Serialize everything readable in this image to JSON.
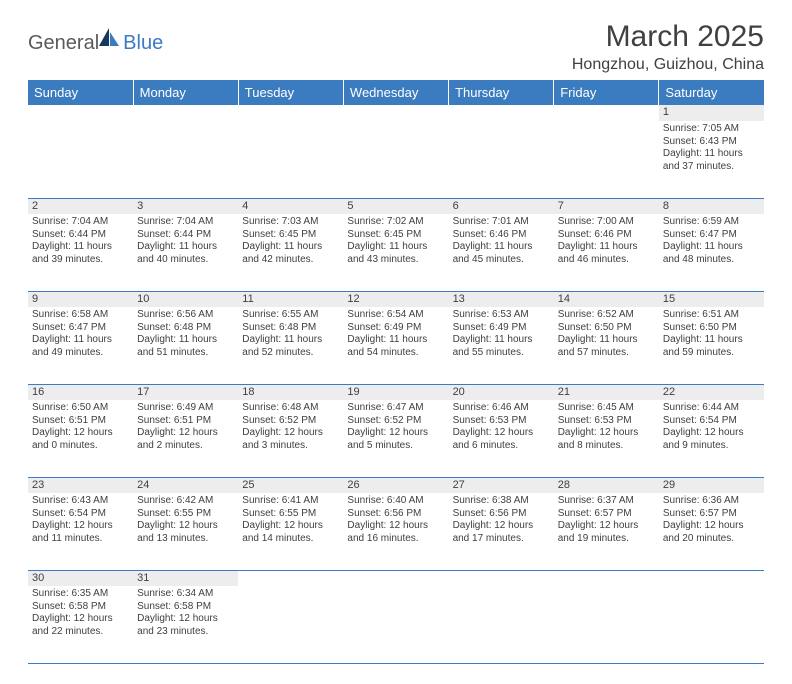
{
  "logo": {
    "text1": "General",
    "text2": "Blue",
    "sail_color_dark": "#17375e",
    "sail_color_light": "#3b7bbf"
  },
  "title": "March 2025",
  "location": "Hongzhou, Guizhou, China",
  "header_bg": "#3b7bbf",
  "header_text_color": "#ffffff",
  "daynum_bg": "#ededed",
  "text_color": "#404040",
  "days": [
    "Sunday",
    "Monday",
    "Tuesday",
    "Wednesday",
    "Thursday",
    "Friday",
    "Saturday"
  ],
  "weeks": [
    [
      null,
      null,
      null,
      null,
      null,
      null,
      {
        "n": "1",
        "sr": "7:05 AM",
        "ss": "6:43 PM",
        "dl": "11 hours and 37 minutes."
      }
    ],
    [
      {
        "n": "2",
        "sr": "7:04 AM",
        "ss": "6:44 PM",
        "dl": "11 hours and 39 minutes."
      },
      {
        "n": "3",
        "sr": "7:04 AM",
        "ss": "6:44 PM",
        "dl": "11 hours and 40 minutes."
      },
      {
        "n": "4",
        "sr": "7:03 AM",
        "ss": "6:45 PM",
        "dl": "11 hours and 42 minutes."
      },
      {
        "n": "5",
        "sr": "7:02 AM",
        "ss": "6:45 PM",
        "dl": "11 hours and 43 minutes."
      },
      {
        "n": "6",
        "sr": "7:01 AM",
        "ss": "6:46 PM",
        "dl": "11 hours and 45 minutes."
      },
      {
        "n": "7",
        "sr": "7:00 AM",
        "ss": "6:46 PM",
        "dl": "11 hours and 46 minutes."
      },
      {
        "n": "8",
        "sr": "6:59 AM",
        "ss": "6:47 PM",
        "dl": "11 hours and 48 minutes."
      }
    ],
    [
      {
        "n": "9",
        "sr": "6:58 AM",
        "ss": "6:47 PM",
        "dl": "11 hours and 49 minutes."
      },
      {
        "n": "10",
        "sr": "6:56 AM",
        "ss": "6:48 PM",
        "dl": "11 hours and 51 minutes."
      },
      {
        "n": "11",
        "sr": "6:55 AM",
        "ss": "6:48 PM",
        "dl": "11 hours and 52 minutes."
      },
      {
        "n": "12",
        "sr": "6:54 AM",
        "ss": "6:49 PM",
        "dl": "11 hours and 54 minutes."
      },
      {
        "n": "13",
        "sr": "6:53 AM",
        "ss": "6:49 PM",
        "dl": "11 hours and 55 minutes."
      },
      {
        "n": "14",
        "sr": "6:52 AM",
        "ss": "6:50 PM",
        "dl": "11 hours and 57 minutes."
      },
      {
        "n": "15",
        "sr": "6:51 AM",
        "ss": "6:50 PM",
        "dl": "11 hours and 59 minutes."
      }
    ],
    [
      {
        "n": "16",
        "sr": "6:50 AM",
        "ss": "6:51 PM",
        "dl": "12 hours and 0 minutes."
      },
      {
        "n": "17",
        "sr": "6:49 AM",
        "ss": "6:51 PM",
        "dl": "12 hours and 2 minutes."
      },
      {
        "n": "18",
        "sr": "6:48 AM",
        "ss": "6:52 PM",
        "dl": "12 hours and 3 minutes."
      },
      {
        "n": "19",
        "sr": "6:47 AM",
        "ss": "6:52 PM",
        "dl": "12 hours and 5 minutes."
      },
      {
        "n": "20",
        "sr": "6:46 AM",
        "ss": "6:53 PM",
        "dl": "12 hours and 6 minutes."
      },
      {
        "n": "21",
        "sr": "6:45 AM",
        "ss": "6:53 PM",
        "dl": "12 hours and 8 minutes."
      },
      {
        "n": "22",
        "sr": "6:44 AM",
        "ss": "6:54 PM",
        "dl": "12 hours and 9 minutes."
      }
    ],
    [
      {
        "n": "23",
        "sr": "6:43 AM",
        "ss": "6:54 PM",
        "dl": "12 hours and 11 minutes."
      },
      {
        "n": "24",
        "sr": "6:42 AM",
        "ss": "6:55 PM",
        "dl": "12 hours and 13 minutes."
      },
      {
        "n": "25",
        "sr": "6:41 AM",
        "ss": "6:55 PM",
        "dl": "12 hours and 14 minutes."
      },
      {
        "n": "26",
        "sr": "6:40 AM",
        "ss": "6:56 PM",
        "dl": "12 hours and 16 minutes."
      },
      {
        "n": "27",
        "sr": "6:38 AM",
        "ss": "6:56 PM",
        "dl": "12 hours and 17 minutes."
      },
      {
        "n": "28",
        "sr": "6:37 AM",
        "ss": "6:57 PM",
        "dl": "12 hours and 19 minutes."
      },
      {
        "n": "29",
        "sr": "6:36 AM",
        "ss": "6:57 PM",
        "dl": "12 hours and 20 minutes."
      }
    ],
    [
      {
        "n": "30",
        "sr": "6:35 AM",
        "ss": "6:58 PM",
        "dl": "12 hours and 22 minutes."
      },
      {
        "n": "31",
        "sr": "6:34 AM",
        "ss": "6:58 PM",
        "dl": "12 hours and 23 minutes."
      },
      null,
      null,
      null,
      null,
      null
    ]
  ],
  "labels": {
    "sunrise": "Sunrise:",
    "sunset": "Sunset:",
    "daylight": "Daylight:"
  }
}
